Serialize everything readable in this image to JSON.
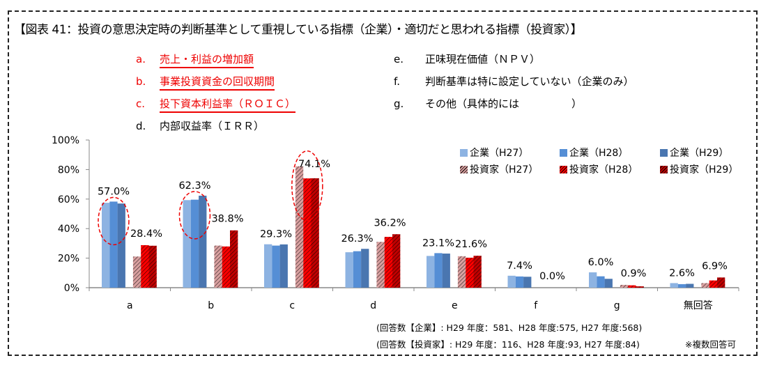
{
  "title": "【図表 41：投資の意思決定時の判断基準として重視している指標（企業）・適切だと思われる指標（投資家）】",
  "items": [
    {
      "key": "a.",
      "label": "売上・利益の増加額",
      "highlight": true
    },
    {
      "key": "b.",
      "label": "事業投資資金の回収期間",
      "highlight": true
    },
    {
      "key": "c.",
      "label": "投下資本利益率（ＲＯＩＣ）",
      "highlight": true
    },
    {
      "key": "d.",
      "label": "内部収益率（ＩＲＲ）",
      "highlight": false
    },
    {
      "key": "e.",
      "label": "正味現在価値（ＮＰＶ）",
      "highlight": false
    },
    {
      "key": "f.",
      "label": "判断基準は特に設定していない（企業のみ）",
      "highlight": false
    },
    {
      "key": "g.",
      "label": "その他（具体的には　　　　　）",
      "highlight": false
    }
  ],
  "chart_data": {
    "type": "bar",
    "categories": [
      "a",
      "b",
      "c",
      "d",
      "e",
      "f",
      "g",
      "無回答"
    ],
    "ylim": [
      0,
      100
    ],
    "yticks": [
      "0%",
      "20%",
      "40%",
      "60%",
      "80%",
      "100%"
    ],
    "legend_position": "top-right",
    "series": [
      {
        "name": "企業（H27）",
        "color": "#8DB3E2",
        "hatch": false,
        "values": [
          57.5,
          59.3,
          29.4,
          24.0,
          21.5,
          8.1,
          10.4,
          3.1
        ]
      },
      {
        "name": "企業（H28）",
        "color": "#558ED5",
        "hatch": false,
        "values": [
          58.3,
          59.6,
          28.5,
          24.7,
          23.4,
          7.6,
          7.7,
          2.4
        ]
      },
      {
        "name": "企業（H29）",
        "color": "#4A76B0",
        "hatch": false,
        "values": [
          57.0,
          62.3,
          29.3,
          26.3,
          23.1,
          7.4,
          6.0,
          2.6
        ]
      },
      {
        "name": "投資家（H27）",
        "color": "#D9A0A0",
        "hatch": true,
        "values": [
          21.1,
          28.5,
          82.2,
          31.0,
          21.3,
          0,
          1.9,
          3.1
        ]
      },
      {
        "name": "投資家（H28）",
        "color": "#FF0000",
        "hatch": true,
        "values": [
          28.8,
          27.9,
          74.0,
          34.4,
          20.3,
          0,
          1.6,
          4.9
        ]
      },
      {
        "name": "投資家（H29）",
        "color": "#C00000",
        "hatch": true,
        "values": [
          28.4,
          38.8,
          74.1,
          36.2,
          21.6,
          0.0,
          0.9,
          6.9
        ]
      }
    ],
    "data_labels": {
      "corporate_h29": [
        "57.0%",
        "62.3%",
        "29.3%",
        "26.3%",
        "23.1%",
        "7.4%",
        "6.0%",
        "2.6%"
      ],
      "investor_h29": [
        "28.4%",
        "38.8%",
        "74.1%",
        "36.2%",
        "21.6%",
        "0.0%",
        "0.9%",
        "6.9%"
      ]
    },
    "highlighted": [
      {
        "category": "a",
        "group": "corporate"
      },
      {
        "category": "b",
        "group": "corporate"
      },
      {
        "category": "c",
        "group": "investor"
      }
    ]
  },
  "notes": {
    "corporate": "(回答数【企業】: H29 年度：581、H28 年度:575, H27 年度:568)",
    "investor": "(回答数【投資家】: H29 年度：116、H28 年度:93, H27 年度:84)",
    "multiple": "※複数回答可"
  }
}
